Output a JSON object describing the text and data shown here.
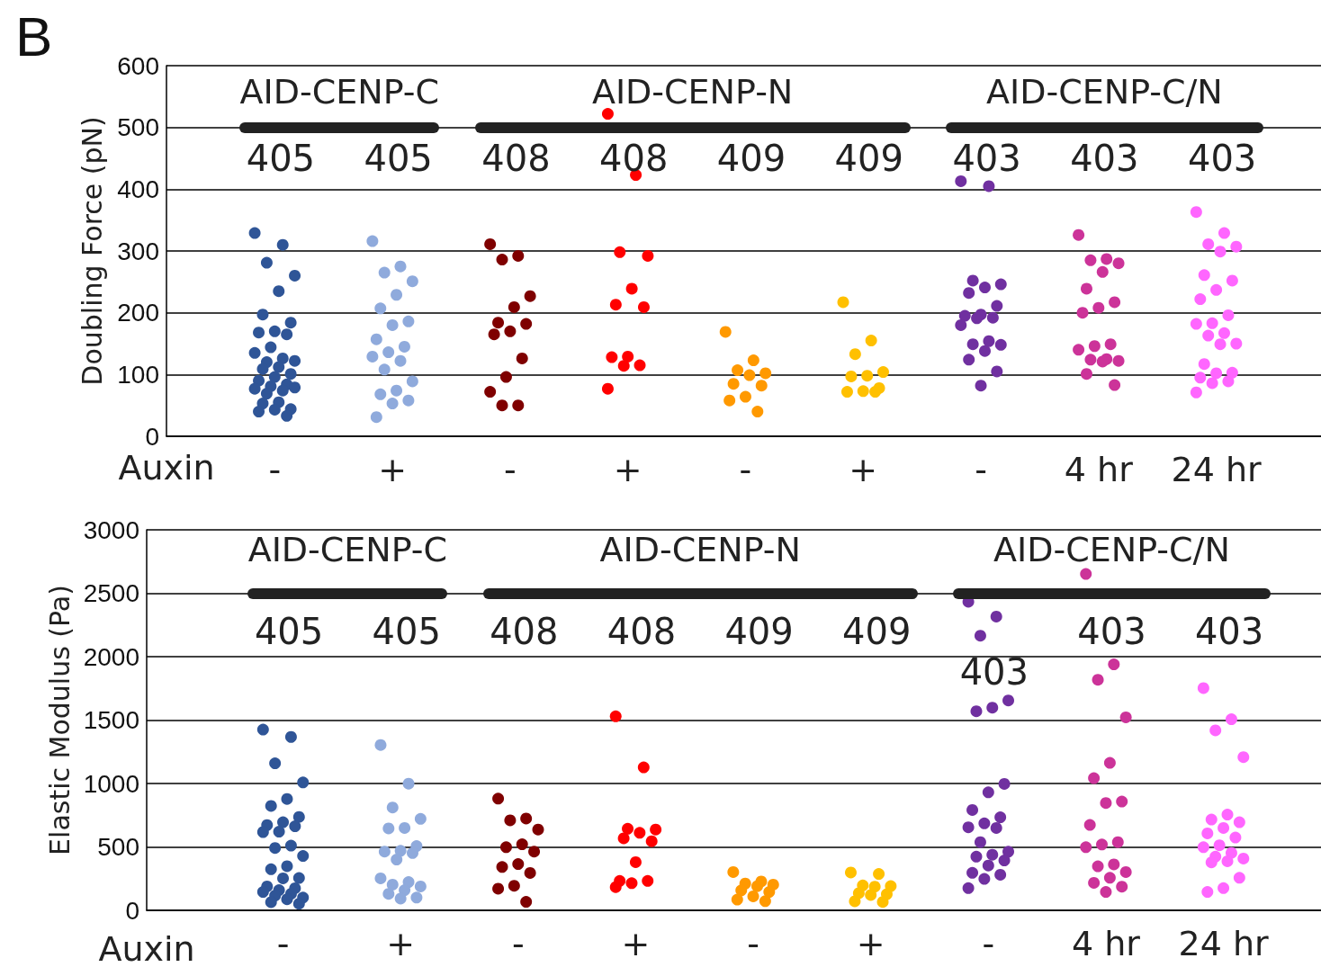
{
  "chart_data": [
    {
      "type": "scatter",
      "title": "B",
      "ylabel": "Doubling Force (pN)",
      "xlabel": "Auxin",
      "categories": [
        "-",
        "+",
        "-",
        "+",
        "-",
        "+",
        "-",
        "4 hr",
        "24 hr"
      ],
      "annotations": [
        "AID-CENP-C",
        "AID-CENP-N",
        "AID-CENP-C/N",
        "405",
        "405",
        "408",
        "408",
        "409",
        "409",
        "403",
        "403",
        "403"
      ],
      "ylim": [
        0,
        600
      ],
      "yticks": [
        0,
        100,
        200,
        300,
        400,
        500,
        600
      ],
      "grid": "y",
      "marker": "circle",
      "series": [
        {
          "colors": [
            "#2f5597",
            "#8faadc",
            "#7f0000",
            "#ff0000",
            "#ff9900",
            "#ffc000",
            "#7030a0",
            "#cc3399",
            "#ff66ff"
          ],
          "values": [
            329,
            316,
            311,
            522,
            169,
            217,
            413,
            326,
            363
          ]
        },
        {
          "colors": [
            "#2f5597",
            "#8faadc",
            "#7f0000",
            "#ff0000",
            "#ff9900",
            "#ffc000",
            "#7030a0",
            "#cc3399",
            "#ff66ff"
          ],
          "values": [
            310,
            275,
            292,
            423,
            123,
            155,
            405,
            287,
            329
          ]
        },
        {
          "colors": [
            "#2f5597",
            "#8faadc",
            "#7f0000",
            "#ff0000",
            "#ff9900",
            "#ffc000",
            "#7030a0",
            "#cc3399",
            "#ff66ff"
          ],
          "values": [
            281,
            265,
            286,
            298,
            107,
            133,
            252,
            285,
            311
          ]
        },
        {
          "colors": [
            "#2f5597",
            "#8faadc",
            "#7f0000",
            "#ff0000",
            "#ff9900",
            "#ffc000",
            "#7030a0",
            "#cc3399",
            "#ff66ff"
          ],
          "values": [
            260,
            251,
            227,
            292,
            102,
            104,
            246,
            280,
            307
          ]
        },
        {
          "colors": [
            "#2f5597",
            "#8faadc",
            "#7f0000",
            "#ff0000",
            "#ff9900",
            "#ffc000",
            "#7030a0",
            "#cc3399",
            "#ff66ff"
          ],
          "values": [
            235,
            229,
            209,
            239,
            99,
            98,
            241,
            266,
            299
          ]
        },
        {
          "colors": [
            "#2f5597",
            "#8faadc",
            "#7f0000",
            "#ff0000",
            "#ff9900",
            "#ffc000",
            "#7030a0",
            "#cc3399",
            "#ff66ff"
          ],
          "values": [
            197,
            207,
            184,
            213,
            85,
            97,
            232,
            239,
            261
          ]
        },
        {
          "colors": [
            "#2f5597",
            "#8faadc",
            "#7f0000",
            "#ff0000",
            "#ff9900",
            "#ffc000",
            "#7030a0",
            "#cc3399",
            "#ff66ff"
          ],
          "values": [
            184,
            186,
            182,
            209,
            82,
            78,
            211,
            217,
            252
          ]
        },
        {
          "colors": [
            "#2f5597",
            "#8faadc",
            "#7f0000",
            "#ff0000",
            "#ff9900",
            "#ffc000",
            "#7030a0",
            "#cc3399",
            "#ff66ff"
          ],
          "values": [
            170,
            180,
            170,
            129,
            64,
            73,
            197,
            208,
            237
          ]
        },
        {
          "colors": [
            "#2f5597",
            "#8faadc",
            "#7f0000",
            "#ff0000",
            "#ff9900",
            "#ffc000",
            "#7030a0",
            "#cc3399",
            "#ff66ff"
          ],
          "values": [
            168,
            157,
            165,
            128,
            58,
            72,
            195,
            200,
            222
          ]
        },
        {
          "colors": [
            "#2f5597",
            "#8faadc",
            "#7f0000",
            "#ff0000",
            "#ff9900",
            "#ffc000",
            "#7030a0",
            "#cc3399",
            "#ff66ff"
          ],
          "values": [
            165,
            145,
            126,
            115,
            40,
            72,
            192,
            149,
            196
          ]
        },
        {
          "colors": [
            "#2f5597",
            "#8faadc",
            "#7f0000",
            "#ff0000",
            null,
            null,
            "#7030a0",
            "#cc3399",
            "#ff66ff"
          ],
          "values": [
            144,
            136,
            96,
            114,
            null,
            null,
            191,
            146,
            183
          ]
        },
        {
          "colors": [
            "#2f5597",
            "#8faadc",
            "#7f0000",
            "#ff0000",
            null,
            null,
            "#7030a0",
            "#cc3399",
            "#ff66ff"
          ],
          "values": [
            135,
            129,
            72,
            77,
            null,
            null,
            180,
            140,
            182
          ]
        },
        {
          "colors": [
            "#2f5597",
            "#8faadc",
            "#7f0000",
            null,
            null,
            null,
            "#7030a0",
            "#cc3399",
            "#ff66ff"
          ],
          "values": [
            126,
            122,
            50,
            null,
            null,
            null,
            154,
            125,
            167
          ]
        },
        {
          "colors": [
            "#2f5597",
            "#8faadc",
            "#7f0000",
            null,
            null,
            null,
            "#7030a0",
            "#cc3399",
            "#ff66ff"
          ],
          "values": [
            120,
            108,
            50,
            null,
            null,
            null,
            149,
            124,
            163
          ]
        },
        {
          "colors": [
            "#2f5597",
            "#8faadc",
            null,
            null,
            null,
            null,
            "#7030a0",
            "#cc3399",
            "#ff66ff"
          ],
          "values": [
            122,
            89,
            null,
            null,
            null,
            null,
            148,
            122,
            150
          ]
        },
        {
          "colors": [
            "#2f5597",
            "#8faadc",
            null,
            null,
            null,
            null,
            "#7030a0",
            "#cc3399",
            "#ff66ff"
          ],
          "values": [
            112,
            74,
            null,
            null,
            null,
            null,
            138,
            121,
            149
          ]
        },
        {
          "colors": [
            "#2f5597",
            "#8faadc",
            null,
            null,
            null,
            null,
            "#7030a0",
            "#cc3399",
            "#ff66ff"
          ],
          "values": [
            109,
            68,
            null,
            null,
            null,
            null,
            124,
            101,
            117
          ]
        },
        {
          "colors": [
            "#2f5597",
            "#8faadc",
            null,
            null,
            null,
            null,
            "#7030a0",
            "#cc3399",
            "#ff66ff"
          ],
          "values": [
            101,
            58,
            null,
            null,
            null,
            null,
            105,
            83,
            103
          ]
        },
        {
          "colors": [
            "#2f5597",
            "#8faadc",
            null,
            null,
            null,
            null,
            "#7030a0",
            null,
            "#ff66ff"
          ],
          "values": [
            96,
            53,
            null,
            null,
            null,
            null,
            82,
            null,
            102
          ]
        },
        {
          "colors": [
            "#2f5597",
            "#8faadc",
            null,
            null,
            null,
            null,
            null,
            null,
            "#ff66ff"
          ],
          "values": [
            90,
            31,
            null,
            null,
            null,
            null,
            null,
            null,
            95
          ]
        },
        {
          "colors": [
            "#2f5597",
            null,
            null,
            null,
            null,
            null,
            null,
            null,
            "#ff66ff"
          ],
          "values": [
            84,
            null,
            null,
            null,
            null,
            null,
            null,
            null,
            89
          ]
        },
        {
          "colors": [
            "#2f5597",
            null,
            null,
            null,
            null,
            null,
            null,
            null,
            "#ff66ff"
          ],
          "values": [
            81,
            null,
            null,
            null,
            null,
            null,
            null,
            null,
            86
          ]
        },
        {
          "colors": [
            "#2f5597",
            null,
            null,
            null,
            null,
            null,
            null,
            null,
            "#ff66ff"
          ],
          "values": [
            77,
            null,
            null,
            null,
            null,
            null,
            null,
            null,
            71
          ]
        },
        {
          "colors": [
            "#2f5597",
            null,
            null,
            null,
            null,
            null,
            null,
            null,
            null
          ],
          "values": [
            74,
            null,
            null,
            null,
            null,
            null,
            null,
            null,
            null
          ]
        },
        {
          "colors": [
            "#2f5597",
            null,
            null,
            null,
            null,
            null,
            null,
            null,
            null
          ],
          "values": [
            69,
            null,
            null,
            null,
            null,
            null,
            null,
            null,
            null
          ]
        },
        {
          "colors": [
            "#2f5597",
            null,
            null,
            null,
            null,
            null,
            null,
            null,
            null
          ],
          "values": [
            79,
            null,
            null,
            null,
            null,
            null,
            null,
            null,
            null
          ]
        },
        {
          "colors": [
            "#2f5597",
            null,
            null,
            null,
            null,
            null,
            null,
            null,
            null
          ],
          "values": [
            55,
            null,
            null,
            null,
            null,
            null,
            null,
            null,
            null
          ]
        },
        {
          "colors": [
            "#2f5597",
            null,
            null,
            null,
            null,
            null,
            null,
            null,
            null
          ],
          "values": [
            53,
            null,
            null,
            null,
            null,
            null,
            null,
            null,
            null
          ]
        },
        {
          "colors": [
            "#2f5597",
            null,
            null,
            null,
            null,
            null,
            null,
            null,
            null
          ],
          "values": [
            44,
            null,
            null,
            null,
            null,
            null,
            null,
            null,
            null
          ]
        },
        {
          "colors": [
            "#2f5597",
            null,
            null,
            null,
            null,
            null,
            null,
            null,
            null
          ],
          "values": [
            43,
            null,
            null,
            null,
            null,
            null,
            null,
            null,
            null
          ]
        },
        {
          "colors": [
            "#2f5597",
            null,
            null,
            null,
            null,
            null,
            null,
            null,
            null
          ],
          "values": [
            40,
            null,
            null,
            null,
            null,
            null,
            null,
            null,
            null
          ]
        },
        {
          "colors": [
            "#2f5597",
            null,
            null,
            null,
            null,
            null,
            null,
            null,
            null
          ],
          "values": [
            33,
            null,
            null,
            null,
            null,
            null,
            null,
            null,
            null
          ]
        }
      ]
    },
    {
      "type": "scatter",
      "ylabel": "Elastic Modulus (Pa)",
      "xlabel": "Auxin",
      "categories": [
        "-",
        "+",
        "-",
        "+",
        "-",
        "+",
        "-",
        "4 hr",
        "24 hr"
      ],
      "annotations": [
        "AID-CENP-C",
        "AID-CENP-N",
        "AID-CENP-C/N",
        "405",
        "405",
        "408",
        "408",
        "409",
        "409",
        "403",
        "403",
        "403"
      ],
      "ylim": [
        0,
        3000
      ],
      "yticks": [
        0,
        500,
        1000,
        1500,
        2000,
        2500,
        3000
      ],
      "grid": "y",
      "marker": "circle",
      "series": [
        {
          "colors": [
            "#2f5597",
            "#8faadc",
            "#7f0000",
            "#ff0000",
            "#ff9900",
            "#ffc000",
            "#7030a0",
            "#cc3399",
            "#ff66ff"
          ],
          "values": [
            1425,
            1304,
            881,
            1530,
            302,
            298,
            2433,
            2652,
            1752
          ]
        },
        {
          "colors": [
            "#2f5597",
            "#8faadc",
            "#7f0000",
            "#ff0000",
            "#ff9900",
            "#ffc000",
            "#7030a0",
            "#cc3399",
            "#ff66ff"
          ],
          "values": [
            1367,
            999,
            724,
            1127,
            227,
            287,
            2316,
            1939,
            1507
          ]
        },
        {
          "colors": [
            "#2f5597",
            "#8faadc",
            "#7f0000",
            "#ff0000",
            "#ff9900",
            "#ffc000",
            "#7030a0",
            "#cc3399",
            "#ff66ff"
          ],
          "values": [
            1159,
            811,
            710,
            643,
            211,
            196,
            2165,
            1818,
            1419
          ]
        },
        {
          "colors": [
            "#2f5597",
            "#8faadc",
            "#7f0000",
            "#ff0000",
            "#ff9900",
            "#ffc000",
            "#7030a0",
            "#cc3399",
            "#ff66ff"
          ],
          "values": [
            1008,
            721,
            637,
            637,
            203,
            191,
            1655,
            1522,
            1208
          ]
        },
        {
          "colors": [
            "#2f5597",
            "#8faadc",
            "#7f0000",
            "#ff0000",
            "#ff9900",
            "#ffc000",
            "#7030a0",
            "#cc3399",
            "#ff66ff"
          ],
          "values": [
            878,
            649,
            521,
            611,
            190,
            187,
            1598,
            1163,
            755
          ]
        },
        {
          "colors": [
            "#2f5597",
            "#8faadc",
            "#7f0000",
            "#ff0000",
            "#ff9900",
            "#ffc000",
            "#7030a0",
            "#cc3399",
            "#ff66ff"
          ],
          "values": [
            823,
            646,
            498,
            568,
            157,
            135,
            1570,
            1042,
            716
          ]
        },
        {
          "colors": [
            "#2f5597",
            "#8faadc",
            "#7f0000",
            "#ff0000",
            "#ff9900",
            "#ffc000",
            "#7030a0",
            "#cc3399",
            "#ff66ff"
          ],
          "values": [
            736,
            507,
            463,
            545,
            145,
            127,
            997,
            858,
            695
          ]
        },
        {
          "colors": [
            "#2f5597",
            "#8faadc",
            "#7f0000",
            "#ff0000",
            "#ff9900",
            "#ffc000",
            "#7030a0",
            "#cc3399",
            "#ff66ff"
          ],
          "values": [
            695,
            469,
            365,
            380,
            110,
            121,
            930,
            846,
            649
          ]
        },
        {
          "colors": [
            "#2f5597",
            "#8faadc",
            "#7f0000",
            "#ff0000",
            "#ff9900",
            "#ffc000",
            "#7030a0",
            "#cc3399",
            "#ff66ff"
          ],
          "values": [
            672,
            463,
            342,
            232,
            85,
            71,
            791,
            673,
            607
          ]
        },
        {
          "colors": [
            "#2f5597",
            "#8faadc",
            "#7f0000",
            "#ff0000",
            "#ff9900",
            "#ffc000",
            "#7030a0",
            "#cc3399",
            "#ff66ff"
          ],
          "values": [
            663,
            452,
            295,
            232,
            72,
            66,
            734,
            538,
            574
          ]
        },
        {
          "colors": [
            "#2f5597",
            "#8faadc",
            "#7f0000",
            "#ff0000",
            null,
            null,
            "#7030a0",
            "#cc3399",
            "#ff66ff"
          ],
          "values": [
            620,
            400,
            194,
            214,
            null,
            null,
            686,
            519,
            513
          ]
        },
        {
          "colors": [
            "#2f5597",
            "#8faadc",
            "#7f0000",
            "#ff0000",
            null,
            null,
            "#7030a0",
            "#cc3399",
            "#ff66ff"
          ],
          "values": [
            617,
            252,
            171,
            183,
            null,
            null,
            655,
            498,
            498
          ]
        },
        {
          "colors": [
            "#2f5597",
            "#8faadc",
            "#7f0000",
            null,
            null,
            null,
            "#7030a0",
            "#cc3399",
            "#ff66ff"
          ],
          "values": [
            510,
            223,
            67,
            null,
            null,
            null,
            649,
            362,
            453
          ]
        },
        {
          "colors": [
            "#2f5597",
            "#8faadc",
            null,
            null,
            null,
            null,
            "#7030a0",
            "#cc3399",
            "#ff66ff"
          ],
          "values": [
            492,
            203,
            null,
            null,
            null,
            null,
            538,
            347,
            423
          ]
        },
        {
          "colors": [
            "#2f5597",
            "#8faadc",
            null,
            null,
            null,
            null,
            "#7030a0",
            "#cc3399",
            "#ff66ff"
          ],
          "values": [
            429,
            188,
            null,
            null,
            null,
            null,
            462,
            302,
            408
          ]
        },
        {
          "colors": [
            "#2f5597",
            "#8faadc",
            null,
            null,
            null,
            null,
            "#7030a0",
            "#cc3399",
            "#ff66ff"
          ],
          "values": [
            348,
            159,
            null,
            null,
            null,
            null,
            438,
            257,
            387
          ]
        },
        {
          "colors": [
            "#2f5597",
            "#8faadc",
            null,
            null,
            null,
            null,
            "#7030a0",
            "#cc3399",
            "#ff66ff"
          ],
          "values": [
            324,
            130,
            null,
            null,
            null,
            null,
            423,
            217,
            378
          ]
        },
        {
          "colors": [
            "#2f5597",
            "#8faadc",
            null,
            null,
            null,
            null,
            "#7030a0",
            "#cc3399",
            "#ff66ff"
          ],
          "values": [
            255,
            101,
            null,
            null,
            null,
            null,
            393,
            187,
            257
          ]
        },
        {
          "colors": [
            "#2f5597",
            "#8faadc",
            null,
            null,
            null,
            null,
            "#7030a0",
            "#cc3399",
            "#ff66ff"
          ],
          "values": [
            252,
            93,
            null,
            null,
            null,
            null,
            353,
            145,
            175
          ]
        },
        {
          "colors": [
            "#2f5597",
            null,
            null,
            null,
            null,
            null,
            "#7030a0",
            null,
            "#ff66ff"
          ],
          "values": [
            188,
            null,
            null,
            null,
            null,
            null,
            296,
            null,
            145
          ]
        },
        {
          "colors": [
            "#2f5597",
            null,
            null,
            null,
            null,
            null,
            "#7030a0",
            null,
            null
          ],
          "values": [
            174,
            null,
            null,
            null,
            null,
            null,
            281,
            null,
            null
          ]
        },
        {
          "colors": [
            "#2f5597",
            null,
            null,
            null,
            null,
            null,
            "#7030a0",
            null,
            null
          ],
          "values": [
            159,
            null,
            null,
            null,
            null,
            null,
            248,
            null,
            null
          ]
        },
        {
          "colors": [
            "#2f5597",
            null,
            null,
            null,
            null,
            null,
            "#7030a0",
            null,
            null
          ],
          "values": [
            145,
            null,
            null,
            null,
            null,
            null,
            175,
            null,
            null
          ]
        },
        {
          "colors": [
            "#2f5597",
            null,
            null,
            null,
            null,
            null,
            null,
            null,
            null
          ],
          "values": [
            130,
            null,
            null,
            null,
            null,
            null,
            null,
            null,
            null
          ]
        },
        {
          "colors": [
            "#2f5597",
            null,
            null,
            null,
            null,
            null,
            null,
            null,
            null
          ],
          "values": [
            116,
            null,
            null,
            null,
            null,
            null,
            null,
            null,
            null
          ]
        },
        {
          "colors": [
            "#2f5597",
            null,
            null,
            null,
            null,
            null,
            null,
            null,
            null
          ],
          "values": [
            101,
            null,
            null,
            null,
            null,
            null,
            null,
            null,
            null
          ]
        },
        {
          "colors": [
            "#2f5597",
            null,
            null,
            null,
            null,
            null,
            null,
            null,
            null
          ],
          "values": [
            87,
            null,
            null,
            null,
            null,
            null,
            null,
            null,
            null
          ]
        },
        {
          "colors": [
            "#2f5597",
            null,
            null,
            null,
            null,
            null,
            null,
            null,
            null
          ],
          "values": [
            64,
            null,
            null,
            null,
            null,
            null,
            null,
            null,
            null
          ]
        },
        {
          "colors": [
            "#2f5597",
            null,
            null,
            null,
            null,
            null,
            null,
            null,
            null
          ],
          "values": [
            52,
            null,
            null,
            null,
            null,
            null,
            null,
            null,
            null
          ]
        }
      ]
    }
  ]
}
